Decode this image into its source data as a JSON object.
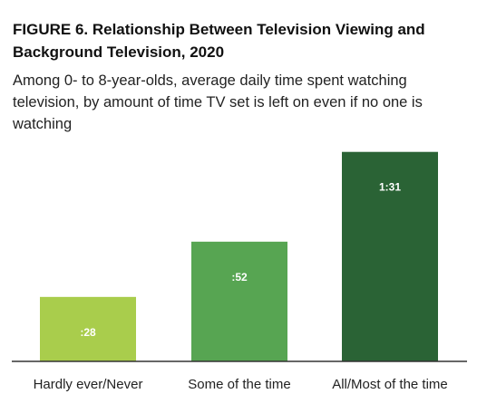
{
  "title": "FIGURE 6. Relationship Between Television Viewing and Background Television, 2020",
  "subtitle": "Among 0- to 8-year-olds, average daily time spent watching television, by amount of time TV set is left on even if no one is watching",
  "chart_data": {
    "type": "bar",
    "categories": [
      "Hardly ever/Never",
      "Some of the time",
      "All/Most of the time"
    ],
    "values": [
      28,
      52,
      91
    ],
    "value_labels": [
      ":28",
      ":52",
      "1:31"
    ],
    "unit": "minutes",
    "ylim": [
      0,
      96
    ],
    "grid": false,
    "legend": "none",
    "colors": [
      "#a9cd4c",
      "#57a552",
      "#2a6335"
    ]
  }
}
